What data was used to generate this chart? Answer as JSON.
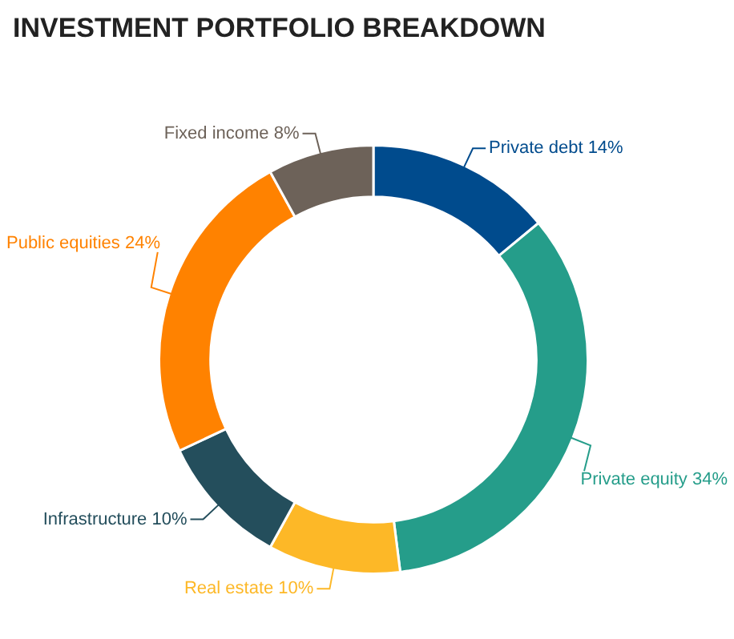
{
  "chart_data": {
    "type": "donut",
    "title": "INVESTMENT PORTFOLIO BREAKDOWN",
    "categories": [
      "Private debt",
      "Private equity",
      "Real estate",
      "Infrastructure",
      "Public equities",
      "Fixed income"
    ],
    "values": [
      14,
      34,
      10,
      10,
      24,
      8
    ],
    "value_labels": [
      "14%",
      "34%",
      "10%",
      "10%",
      "24%",
      "8%"
    ],
    "colors": [
      "#004b8d",
      "#259d8a",
      "#fdb827",
      "#244e5c",
      "#ff8200",
      "#6d6259"
    ],
    "legend": false
  }
}
